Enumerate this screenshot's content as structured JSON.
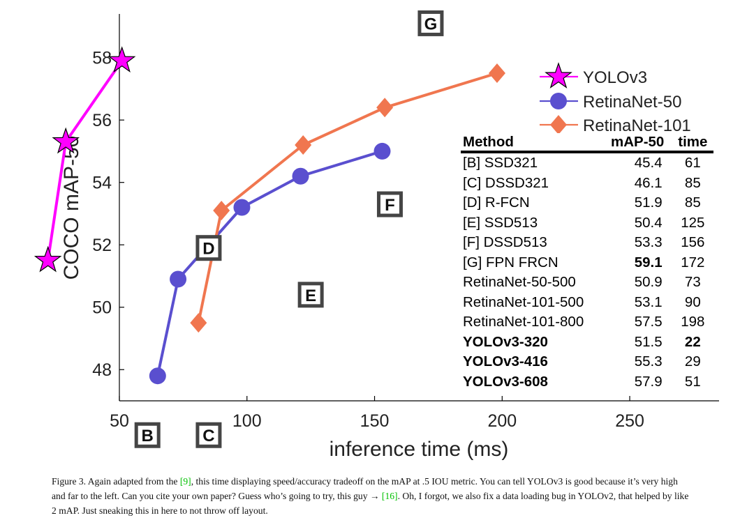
{
  "chart_data": {
    "type": "line",
    "xlabel": "inference time (ms)",
    "ylabel": "COCO mAP-50",
    "xlim": [
      50,
      285
    ],
    "ylim": [
      47,
      59.4
    ],
    "xticks": [
      50,
      100,
      150,
      200,
      250
    ],
    "yticks": [
      48,
      50,
      52,
      54,
      56,
      58
    ],
    "grid": false,
    "legend_position": "top-right",
    "series": [
      {
        "name": "YOLOv3",
        "color": "#ff00ff",
        "marker": "star",
        "x": [
          22,
          29,
          51
        ],
        "y": [
          51.5,
          55.3,
          57.9
        ]
      },
      {
        "name": "RetinaNet-50",
        "color": "#5a4fcf",
        "marker": "circle",
        "x": [
          65,
          73,
          98,
          121,
          153
        ],
        "y": [
          47.8,
          50.9,
          53.2,
          54.2,
          55.0
        ]
      },
      {
        "name": "RetinaNet-101",
        "color": "#f0764f",
        "marker": "diamond",
        "x": [
          81,
          90,
          122,
          154,
          198
        ],
        "y": [
          49.5,
          53.1,
          55.2,
          56.4,
          57.5
        ]
      }
    ],
    "point_labels": [
      {
        "label": "B",
        "x": 61,
        "y": 45.9
      },
      {
        "label": "C",
        "x": 85,
        "y": 45.9
      },
      {
        "label": "D",
        "x": 85,
        "y": 51.9
      },
      {
        "label": "E",
        "x": 125,
        "y": 50.4
      },
      {
        "label": "F",
        "x": 156,
        "y": 53.3
      },
      {
        "label": "G",
        "x": 172,
        "y": 59.1
      }
    ],
    "table": {
      "headers": [
        "Method",
        "mAP-50",
        "time"
      ],
      "rows": [
        {
          "method": "[B] SSD321",
          "map": "45.4",
          "time": "61",
          "bold_method": false,
          "bold_map": false,
          "bold_time": false
        },
        {
          "method": "[C] DSSD321",
          "map": "46.1",
          "time": "85",
          "bold_method": false,
          "bold_map": false,
          "bold_time": false
        },
        {
          "method": "[D] R-FCN",
          "map": "51.9",
          "time": "85",
          "bold_method": false,
          "bold_map": false,
          "bold_time": false
        },
        {
          "method": "[E] SSD513",
          "map": "50.4",
          "time": "125",
          "bold_method": false,
          "bold_map": false,
          "bold_time": false
        },
        {
          "method": "[F] DSSD513",
          "map": "53.3",
          "time": "156",
          "bold_method": false,
          "bold_map": false,
          "bold_time": false
        },
        {
          "method": "[G] FPN FRCN",
          "map": "59.1",
          "time": "172",
          "bold_method": false,
          "bold_map": true,
          "bold_time": false
        },
        {
          "method": "RetinaNet-50-500",
          "map": "50.9",
          "time": "73",
          "bold_method": false,
          "bold_map": false,
          "bold_time": false
        },
        {
          "method": "RetinaNet-101-500",
          "map": "53.1",
          "time": "90",
          "bold_method": false,
          "bold_map": false,
          "bold_time": false
        },
        {
          "method": "RetinaNet-101-800",
          "map": "57.5",
          "time": "198",
          "bold_method": false,
          "bold_map": false,
          "bold_time": false
        },
        {
          "method": "YOLOv3-320",
          "map": "51.5",
          "time": "22",
          "bold_method": true,
          "bold_map": false,
          "bold_time": true
        },
        {
          "method": "YOLOv3-416",
          "map": "55.3",
          "time": "29",
          "bold_method": true,
          "bold_map": false,
          "bold_time": false
        },
        {
          "method": "YOLOv3-608",
          "map": "57.9",
          "time": "51",
          "bold_method": true,
          "bold_map": false,
          "bold_time": false
        }
      ]
    }
  },
  "caption": {
    "prefix": "Figure 3. Again adapted from the ",
    "ref1": "[9]",
    "middle": ", this time displaying speed/accuracy tradeoff on the mAP at .5 IOU metric. You can tell YOLOv3 is good because it’s very high and far to the left. Can you cite your own paper? Guess who’s going to try, this guy → ",
    "ref2": "[16]",
    "suffix": ". Oh, I forgot, we also fix a data loading bug in YOLOv2, that helped by like 2 mAP. Just sneaking this in here to not throw off layout."
  }
}
